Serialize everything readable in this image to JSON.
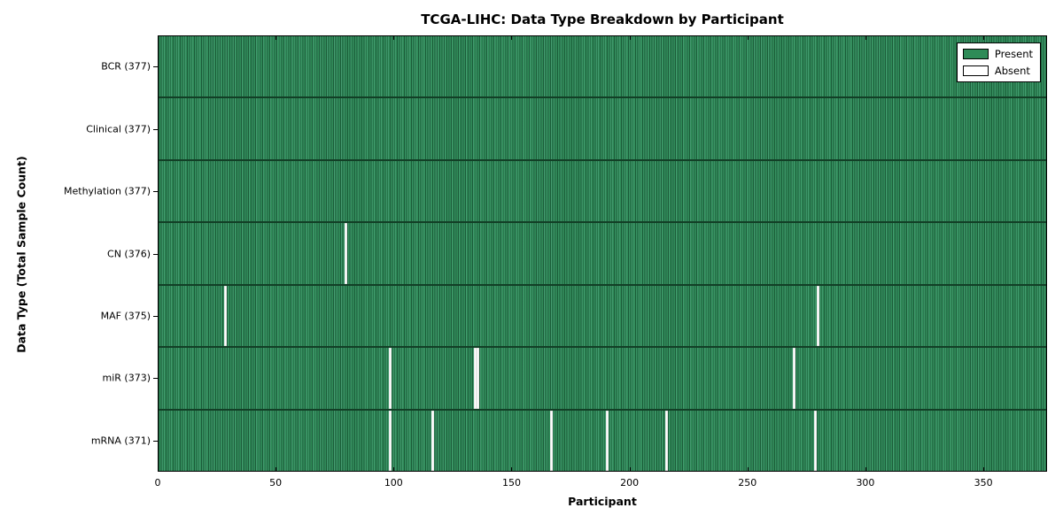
{
  "chart_data": {
    "type": "heatmap",
    "title": "TCGA-LIHC: Data Type Breakdown by Participant",
    "xlabel": "Participant",
    "ylabel": "Data Type (Total Sample Count)",
    "x_range": [
      0,
      377
    ],
    "x_ticks": [
      0,
      50,
      100,
      150,
      200,
      250,
      300,
      350
    ],
    "total_participants": 377,
    "grid": false,
    "legend_position": "upper right",
    "legend": [
      {
        "label": "Present",
        "color": "#2e8b57"
      },
      {
        "label": "Absent",
        "color": "#ffffff"
      }
    ],
    "rows": [
      {
        "label": "BCR (377)",
        "data_type": "BCR",
        "present_count": 377,
        "absent_participants": []
      },
      {
        "label": "Clinical (377)",
        "data_type": "Clinical",
        "present_count": 377,
        "absent_participants": []
      },
      {
        "label": "Methylation (377)",
        "data_type": "Methylation",
        "present_count": 377,
        "absent_participants": []
      },
      {
        "label": "CN (376)",
        "data_type": "CN",
        "present_count": 376,
        "absent_participants": [
          79
        ]
      },
      {
        "label": "MAF (375)",
        "data_type": "MAF",
        "present_count": 375,
        "absent_participants": [
          28,
          279
        ]
      },
      {
        "label": "miR (373)",
        "data_type": "miR",
        "present_count": 373,
        "absent_participants": [
          98,
          134,
          135,
          269
        ]
      },
      {
        "label": "mRNA (371)",
        "data_type": "mRNA",
        "present_count": 371,
        "absent_participants": [
          98,
          116,
          166,
          190,
          215,
          278
        ]
      }
    ]
  },
  "colors": {
    "present_green": "#2e8b57",
    "bar_edge_dark": "#1b5c39",
    "absent_white": "#ffffff",
    "axis_black": "#000000",
    "background": "#ffffff"
  }
}
